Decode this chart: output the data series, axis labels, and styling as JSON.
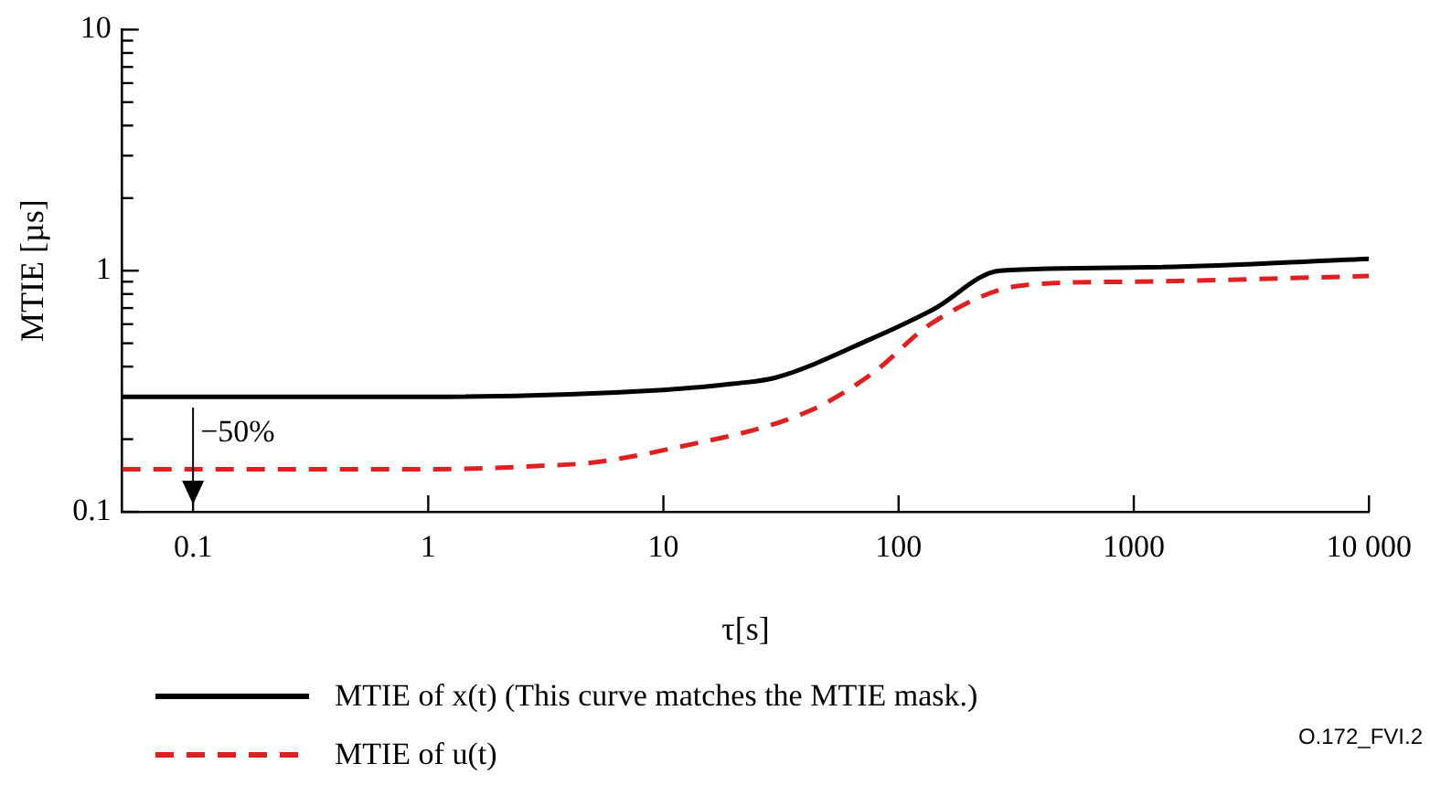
{
  "chart_data": {
    "type": "line",
    "xlabel": "τ[s]",
    "ylabel": "MTIE [µs]",
    "log": "xy",
    "grid": false,
    "legend": "bottom",
    "marker": "none",
    "xlim": [
      0.05,
      10000
    ],
    "xticks": [
      0.1,
      1,
      10,
      100,
      1000,
      {
        "value": 10000,
        "label": "10 000"
      }
    ],
    "ylim": [
      0.1,
      10
    ],
    "yticks": [
      0.1,
      {
        "value": 0.2,
        "label": null
      },
      {
        "value": 0.3,
        "label": null
      },
      {
        "value": 0.4,
        "label": null
      },
      {
        "value": 0.5,
        "label": null
      },
      {
        "value": 0.6,
        "label": null
      },
      {
        "value": 0.7,
        "label": null
      },
      {
        "value": 0.8,
        "label": null
      },
      {
        "value": 0.9,
        "label": null
      },
      1,
      {
        "value": 2,
        "label": null
      },
      {
        "value": 3,
        "label": null
      },
      {
        "value": 4,
        "label": null
      },
      {
        "value": 5,
        "label": null
      },
      {
        "value": 6,
        "label": null
      },
      {
        "value": 7,
        "label": null
      },
      {
        "value": 8,
        "label": null
      },
      {
        "value": 9,
        "label": null
      },
      10
    ],
    "series": [
      {
        "name": "MTIE of x(t) (This curve matches the MTIE mask.)",
        "color": "#000000",
        "line_style": "solid",
        "x": [
          0.05,
          0.1,
          1,
          10,
          20,
          30,
          76,
          140,
          270,
          1000,
          10000
        ],
        "values": [
          0.3,
          0.3,
          0.3,
          0.32,
          0.34,
          0.36,
          0.52,
          0.69,
          1.0,
          1.03,
          1.12
        ]
      },
      {
        "name": "MTIE of u(t)",
        "color": "#e02020",
        "line_style": "dashed",
        "x": [
          0.05,
          0.1,
          1,
          3,
          5,
          10,
          41,
          76,
          140,
          340,
          1000,
          10000
        ],
        "values": [
          0.15,
          0.15,
          0.15,
          0.155,
          0.16,
          0.18,
          0.26,
          0.37,
          0.61,
          0.87,
          0.9,
          0.95
        ]
      }
    ],
    "annotations": [
      "−50%",
      "O.172_FVI.2"
    ]
  }
}
